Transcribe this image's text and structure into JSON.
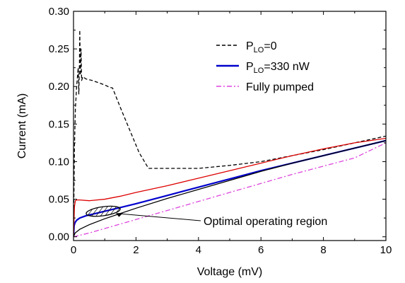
{
  "chart_data": {
    "type": "line",
    "xlabel": "Voltage (mV)",
    "ylabel": "Current (mA)",
    "xlim": [
      0,
      10
    ],
    "ylim": [
      -0.005,
      0.3
    ],
    "x_ticks": [
      0,
      2,
      4,
      6,
      8,
      10
    ],
    "y_ticks": [
      0.0,
      0.05,
      0.1,
      0.15,
      0.2,
      0.25,
      0.3
    ],
    "x_tick_labels": [
      "0",
      "2",
      "4",
      "6",
      "8",
      "10"
    ],
    "y_tick_labels": [
      "0.00",
      "0.05",
      "0.10",
      "0.15",
      "0.20",
      "0.25",
      "0.30"
    ],
    "grid": false,
    "legend_position": "top-right",
    "series": [
      {
        "name": "P_LO=0",
        "legend": {
          "main": "P",
          "sub": "LO",
          "tail": "=0"
        },
        "color": "#000000",
        "style": "dashed",
        "x": [
          0,
          0.03,
          0.06,
          0.1,
          0.13,
          0.15,
          0.17,
          0.19,
          0.2,
          0.22,
          0.24,
          0.26,
          0.3,
          0.4,
          0.6,
          0.8,
          1.0,
          1.15,
          1.25,
          1.5,
          1.8,
          2.1,
          2.4,
          3,
          4,
          5,
          6,
          7,
          8,
          9,
          10
        ],
        "y": [
          0,
          0.12,
          0.17,
          0.2,
          0.215,
          0.225,
          0.19,
          0.23,
          0.275,
          0.215,
          0.25,
          0.208,
          0.213,
          0.21,
          0.208,
          0.205,
          0.202,
          0.199,
          0.198,
          0.172,
          0.142,
          0.112,
          0.091,
          0.091,
          0.091,
          0.095,
          0.1,
          0.108,
          0.116,
          0.125,
          0.134
        ]
      },
      {
        "name": "P_LO=330 nW",
        "legend": {
          "main": "P",
          "sub": "LO",
          "tail": "=330 nW"
        },
        "color": "#0000cc",
        "style": "solid",
        "x": [
          0,
          0.02,
          0.05,
          0.1,
          0.2,
          0.4,
          0.7,
          1.0,
          1.5,
          2,
          3,
          4,
          5,
          6,
          7,
          8,
          9,
          10
        ],
        "y": [
          0,
          0.015,
          0.019,
          0.022,
          0.025,
          0.028,
          0.031,
          0.034,
          0.039,
          0.044,
          0.055,
          0.066,
          0.077,
          0.088,
          0.098,
          0.108,
          0.118,
          0.128
        ]
      },
      {
        "name": "Fully pumped",
        "legend": {
          "main": "Fully pumped",
          "sub": "",
          "tail": ""
        },
        "color": "#dd44dd",
        "style": "dashdot",
        "x": [
          0,
          0.5,
          1,
          2,
          3,
          4,
          5,
          6,
          7,
          8,
          9,
          10
        ],
        "y": [
          0,
          0.005,
          0.011,
          0.023,
          0.035,
          0.047,
          0.059,
          0.071,
          0.083,
          0.094,
          0.105,
          0.125
        ]
      },
      {
        "name": "",
        "color": "#dd0000",
        "style": "solid",
        "x": [
          0,
          0.03,
          0.06,
          0.1,
          0.2,
          0.5,
          1.0,
          1.5,
          2,
          3,
          4,
          5,
          6,
          7,
          8,
          9,
          10
        ],
        "y": [
          0,
          0.04,
          0.048,
          0.049,
          0.049,
          0.048,
          0.05,
          0.054,
          0.059,
          0.068,
          0.078,
          0.088,
          0.098,
          0.108,
          0.117,
          0.125,
          0.131
        ]
      },
      {
        "name": "",
        "color": "#000000",
        "style": "solid",
        "x": [
          0,
          0.05,
          0.2,
          0.5,
          1.0,
          1.5,
          2,
          3,
          4,
          5,
          6,
          7,
          8,
          9,
          10
        ],
        "y": [
          0,
          0.005,
          0.01,
          0.016,
          0.024,
          0.031,
          0.038,
          0.051,
          0.063,
          0.075,
          0.087,
          0.098,
          0.108,
          0.118,
          0.128
        ]
      }
    ],
    "annotations": [
      {
        "text": "Optimal operating region",
        "target_x": 0.95,
        "target_y": 0.034,
        "ellipse_rx": 0.55,
        "ellipse_ry": 0.006,
        "hatched": true
      }
    ]
  }
}
